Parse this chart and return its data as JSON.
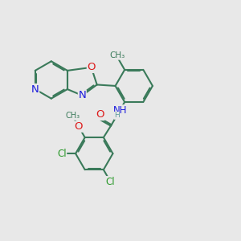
{
  "background_color": "#e8e8e8",
  "bond_color": "#3a7a5a",
  "bond_width": 1.5,
  "dbo": 0.055,
  "atom_colors": {
    "N": "#1a1add",
    "O": "#dd1a1a",
    "Cl": "#2a992a",
    "NH": "#1a1add",
    "H": "#5a9a9a"
  },
  "fs": 8.5,
  "fig_w": 3.0,
  "fig_h": 3.0
}
